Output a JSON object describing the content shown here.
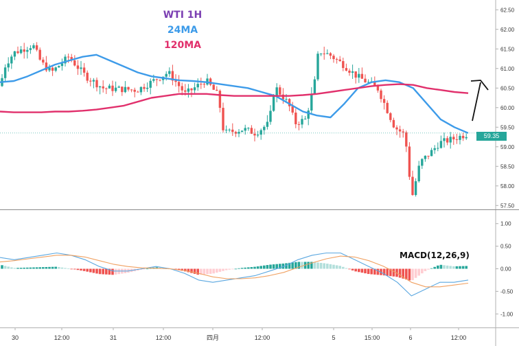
{
  "legend": {
    "symbol": "WTI 1H",
    "ma24_label": "24MA",
    "ma120_label": "120MA"
  },
  "macd_label": "MACD(12,26,9)",
  "last_price_label": "59.35",
  "colors": {
    "up": "#26a69a",
    "down": "#ef5350",
    "ma24": "#3d9be9",
    "ma120": "#e1306c",
    "macd_line": "#5aa7e0",
    "signal_line": "#f0a060",
    "hist_up_strong": "#26a69a",
    "hist_up_weak": "#b2dfdb",
    "hist_down_strong": "#ef5350",
    "hist_down_weak": "#ffcdd2",
    "symbol_text": "#7b3fb2",
    "ma24_text": "#3d9be9",
    "ma120_text": "#e1306c",
    "annotation_arrow": "#111111"
  },
  "chart_data": [
    {
      "type": "candlestick",
      "title": "WTI 1H",
      "x_ticks": [
        "30",
        "12:00",
        "31",
        "12:00",
        "四月",
        "12:00",
        "5",
        "15:00",
        "6",
        "12:00"
      ],
      "y_ticks": [
        "57.50",
        "58.00",
        "58.50",
        "59.00",
        "59.50",
        "60.00",
        "60.50",
        "61.00",
        "61.50",
        "62.00",
        "62.50"
      ],
      "ylim": [
        57.4,
        62.75
      ],
      "grid": false,
      "series": [
        {
          "name": "24MA",
          "values": [
            60.65,
            60.68,
            60.8,
            60.95,
            61.1,
            61.2,
            61.3,
            61.35,
            61.2,
            61.05,
            60.9,
            60.8,
            60.75,
            60.7,
            60.68,
            60.65,
            60.6,
            60.55,
            60.5,
            60.4,
            60.3,
            60.1,
            59.9,
            59.8,
            59.75,
            60.1,
            60.5,
            60.65,
            60.7,
            60.65,
            60.5,
            60.1,
            59.7,
            59.5,
            59.35
          ]
        },
        {
          "name": "120MA",
          "values": [
            59.9,
            59.88,
            59.88,
            59.88,
            59.9,
            59.9,
            59.92,
            59.95,
            60.0,
            60.05,
            60.15,
            60.25,
            60.3,
            60.35,
            60.35,
            60.35,
            60.32,
            60.3,
            60.3,
            60.3,
            60.3,
            60.3,
            60.32,
            60.35,
            60.4,
            60.45,
            60.5,
            60.55,
            60.58,
            60.6,
            60.58,
            60.5,
            60.45,
            60.4,
            60.37
          ]
        }
      ],
      "last_price": 59.35
    },
    {
      "type": "bar",
      "title": "MACD(12,26,9)",
      "y_ticks": [
        "-1.00",
        "-0.50",
        "0.00",
        "0.50",
        "1.00"
      ],
      "ylim": [
        -1.3,
        1.3
      ],
      "series": [
        {
          "name": "MACD",
          "values": [
            0.25,
            0.2,
            0.25,
            0.3,
            0.35,
            0.3,
            0.2,
            0.05,
            -0.05,
            -0.05,
            -0.0,
            0.05,
            0.0,
            -0.1,
            -0.25,
            -0.3,
            -0.25,
            -0.2,
            -0.15,
            -0.05,
            0.05,
            0.2,
            0.3,
            0.35,
            0.35,
            0.2,
            0.05,
            -0.1,
            -0.3,
            -0.6,
            -0.45,
            -0.3,
            -0.3,
            -0.25
          ]
        },
        {
          "name": "Signal",
          "values": [
            0.15,
            0.18,
            0.22,
            0.26,
            0.3,
            0.3,
            0.26,
            0.18,
            0.1,
            0.05,
            0.02,
            0.01,
            0.0,
            -0.04,
            -0.1,
            -0.18,
            -0.22,
            -0.22,
            -0.2,
            -0.15,
            -0.08,
            0.03,
            0.13,
            0.22,
            0.28,
            0.26,
            0.18,
            0.06,
            -0.1,
            -0.3,
            -0.4,
            -0.4,
            -0.36,
            -0.32
          ]
        }
      ]
    }
  ]
}
